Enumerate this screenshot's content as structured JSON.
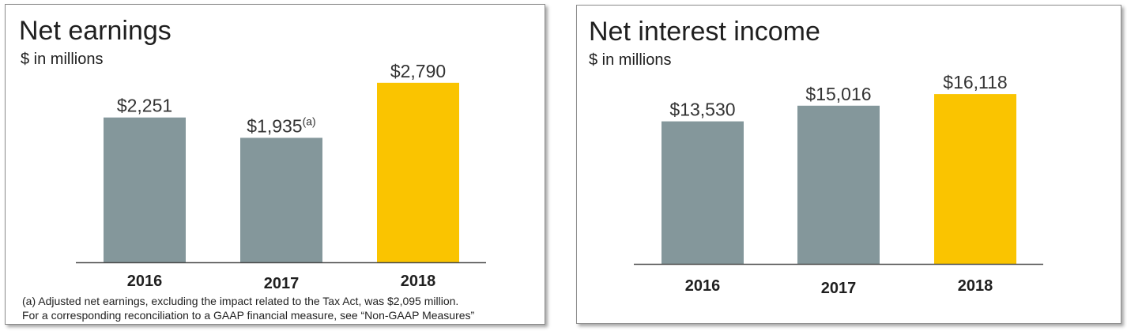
{
  "chart_data": [
    {
      "type": "bar",
      "title": "Net earnings",
      "subtitle": "$ in millions",
      "categories": [
        "2016",
        "2017",
        "2018"
      ],
      "values": [
        2251,
        1935,
        2790
      ],
      "data_labels": [
        "$2,251",
        "$1,935",
        "$2,790"
      ],
      "label_superscripts": [
        "",
        "(a)",
        ""
      ],
      "ylim": [
        0,
        2800
      ],
      "colors": [
        "#84979b",
        "#84979b",
        "#fac400"
      ],
      "xlabel": "",
      "ylabel": "",
      "grid": false,
      "footnotes": [
        "(a) Adjusted net earnings, excluding the impact related to the Tax Act, was $2,095 million.",
        "For a corresponding reconciliation to a GAAP financial measure, see “Non-GAAP Measures”"
      ]
    },
    {
      "type": "bar",
      "title": "Net interest income",
      "subtitle": "$ in millions",
      "categories": [
        "2016",
        "2017",
        "2018"
      ],
      "values": [
        13530,
        15016,
        16118
      ],
      "data_labels": [
        "$13,530",
        "$15,016",
        "$16,118"
      ],
      "label_superscripts": [
        "",
        "",
        ""
      ],
      "ylim": [
        0,
        17100
      ],
      "colors": [
        "#84979b",
        "#84979b",
        "#fac400"
      ],
      "xlabel": "",
      "ylabel": "",
      "grid": false,
      "footnotes": []
    }
  ]
}
